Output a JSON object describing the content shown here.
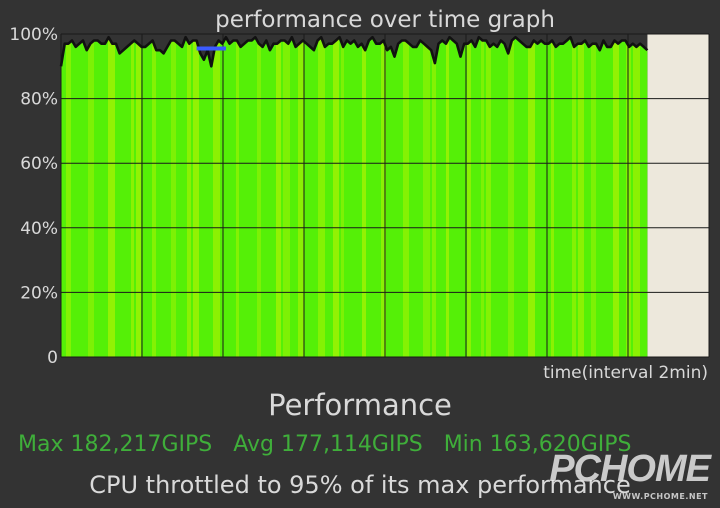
{
  "chart_data": {
    "type": "area",
    "title": "performance over time graph",
    "xlabel": "time(interval 2min)",
    "ylabel": "",
    "y_tick_labels": [
      "0",
      "20%",
      "40%",
      "60%",
      "80%",
      "100%"
    ],
    "y_ticks": [
      0,
      20,
      40,
      60,
      80,
      100
    ],
    "ylim": [
      0,
      100
    ],
    "x_intervals": 8,
    "x_data_extent": 0.905,
    "grid": true,
    "colors": {
      "fill": "#55f007",
      "fill_alt": "#9ef203",
      "line": "#111111",
      "empty": "#ede8dc",
      "plot_bg": "#333333",
      "marker": "#3b5bff"
    },
    "series": [
      {
        "values": [
          90,
          97,
          97,
          98,
          96,
          97,
          98,
          95,
          97,
          98,
          98,
          97,
          97,
          99,
          97,
          97,
          94,
          95,
          96,
          97,
          98,
          97,
          96,
          96,
          97,
          98,
          95,
          95,
          94,
          96,
          98,
          98,
          97,
          96,
          99,
          97,
          98,
          98,
          94,
          92,
          95,
          90,
          96,
          98,
          97,
          99,
          97,
          98,
          98,
          96,
          97,
          98,
          98,
          99,
          97,
          96,
          98,
          95,
          97,
          97,
          98,
          98,
          97,
          99,
          96,
          97,
          98,
          97,
          96,
          95,
          98,
          99,
          96,
          97,
          97,
          98,
          99,
          96,
          98,
          97,
          98,
          96,
          97,
          95,
          98,
          99,
          97,
          97,
          98,
          95,
          96,
          93,
          97,
          98,
          98,
          97,
          96,
          96,
          98,
          97,
          96,
          95,
          91,
          97,
          98,
          97,
          99,
          98,
          97,
          93,
          97,
          97,
          98,
          96,
          99,
          98,
          98,
          96,
          97,
          96,
          98,
          97,
          94,
          98,
          99,
          98,
          97,
          96,
          96,
          98,
          97,
          98,
          97,
          97,
          98,
          96,
          97,
          97,
          98,
          99,
          96,
          97,
          97,
          98,
          96,
          97,
          97,
          95,
          98,
          96,
          96,
          98,
          97,
          98,
          98,
          96,
          97,
          96,
          97,
          96,
          95
        ]
      }
    ],
    "marker": {
      "from_index": 37,
      "to_index": 45,
      "value": 95.5
    }
  },
  "performance_title": "Performance",
  "stats": {
    "max": "Max 182,217GIPS",
    "avg": "Avg 177,114GIPS",
    "min": "Min 163,620GIPS"
  },
  "throttle_text": "CPU throttled to 95% of its max performance",
  "watermark": {
    "main": "PCHOME",
    "sub": "WWW.PCHOME.NET"
  }
}
